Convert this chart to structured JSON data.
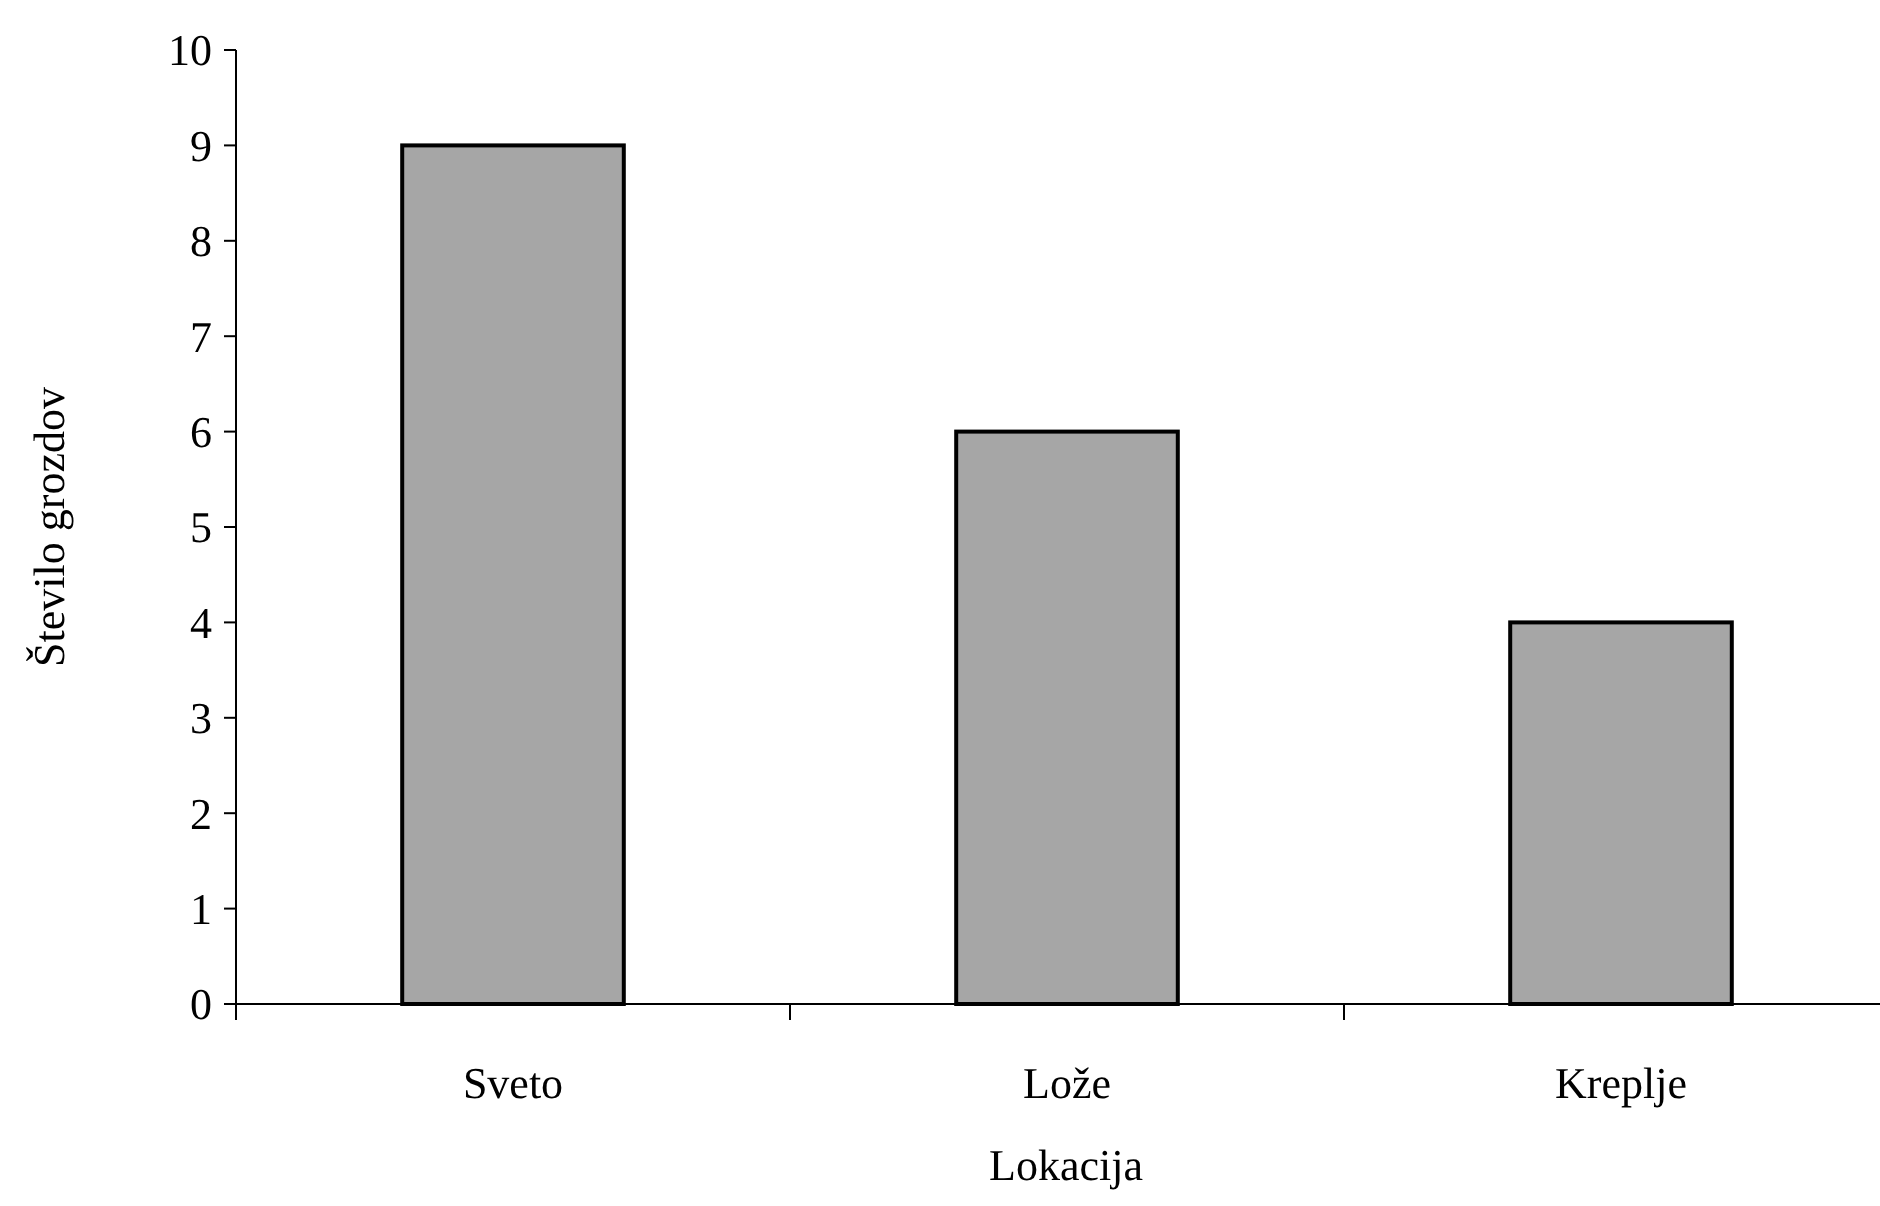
{
  "chart_data": {
    "type": "bar",
    "xlabel": "Lokacija",
    "ylabel": "Število grozdov",
    "categories": [
      "Sveto",
      "Lože",
      "Kreplje"
    ],
    "values": [
      9,
      6,
      4
    ],
    "color": "#a6a6a6",
    "ylim": [
      0,
      10
    ],
    "yticks": [
      0,
      1,
      2,
      3,
      4,
      5,
      6,
      7,
      8,
      9,
      10
    ],
    "grid": false
  }
}
